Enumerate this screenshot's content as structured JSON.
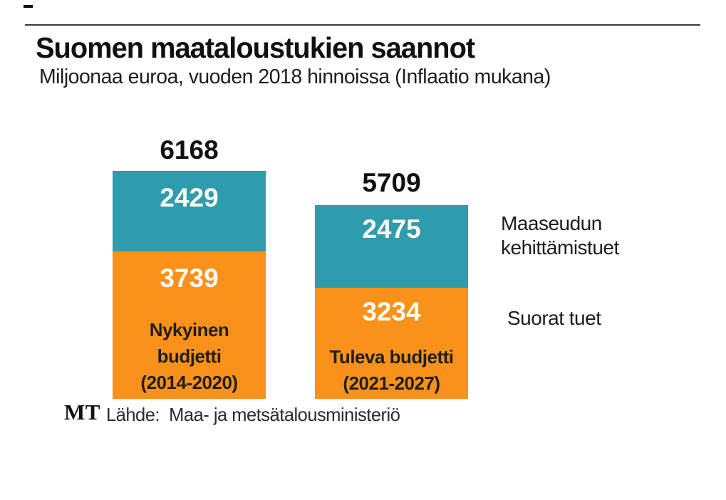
{
  "header": {
    "title": "Suomen maataloustukien saannot",
    "subtitle": "Miljoonaa euroa, vuoden 2018 hinnoissa (Inflaatio mukana)"
  },
  "colors": {
    "rural_development_teal": "#2e9cad",
    "direct_support_orange": "#f9911b",
    "rule_gray": "#3a3a3a",
    "in_bar_text": "#fbfcf2"
  },
  "chart_data": {
    "type": "bar",
    "stacked": true,
    "title": "Suomen maataloustukien saannot",
    "subtitle": "Miljoonaa euroa, vuoden 2018 hinnoissa (Inflaatio mukana)",
    "unit": "miljoonaa euroa (vuoden 2018 hinnoissa)",
    "categories": [
      "Nykyinen budjetti (2014-2020)",
      "Tuleva budjetti (2021-2027)"
    ],
    "series": [
      {
        "name": "Maaseudun kehittämistuet",
        "color": "#2e9cad",
        "values": [
          2429,
          2475
        ]
      },
      {
        "name": "Suorat tuet",
        "color": "#f9911b",
        "values": [
          3739,
          3234
        ]
      }
    ],
    "totals": [
      6168,
      5709
    ],
    "legend_position": "right",
    "grid": false,
    "axes_shown": false
  },
  "bars": [
    {
      "total": "6168",
      "dev_value": "2429",
      "direct_value": "3739",
      "caption_lines": [
        "Nykyinen",
        "budjetti",
        "(2014-2020)"
      ]
    },
    {
      "total": "5709",
      "dev_value": "2475",
      "direct_value": "3234",
      "caption_lines": [
        "Tuleva budjetti",
        "(2021-2027)"
      ]
    }
  ],
  "legend": {
    "rural_development": "Maaseudun\nkehittämistuet",
    "direct_support": "Suorat tuet"
  },
  "footer": {
    "logo": "MT",
    "source": "Lähde:  Maa- ja metsätalousministeriö"
  }
}
